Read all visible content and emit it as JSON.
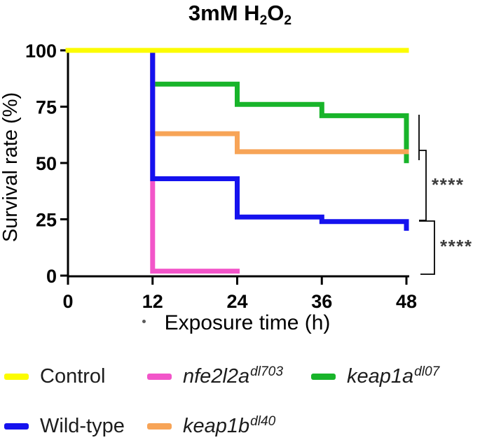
{
  "figure": {
    "title": {
      "prefix": "3mM H",
      "sub1": "2",
      "mid": "O",
      "sub2": "2"
    },
    "y_axis_label": "Survival rate (%)",
    "x_axis_label": "Exposure time (h)"
  },
  "chart_data": {
    "type": "line",
    "subtype": "kaplan-meier-step-survival",
    "title": "3mM H2O2",
    "xlabel": "Exposure time (h)",
    "ylabel": "Survival rate (%)",
    "xlim": [
      0,
      48
    ],
    "ylim": [
      0,
      100
    ],
    "x_ticks": [
      0,
      12,
      24,
      36,
      48
    ],
    "y_ticks": [
      0,
      25,
      50,
      75,
      100
    ],
    "grid": false,
    "legend_position": "bottom",
    "series": [
      {
        "id": "keap1a-dl07",
        "name": "keap1a dl07",
        "color": "#18B42A",
        "points": [
          [
            0,
            100
          ],
          [
            12,
            100
          ],
          [
            12,
            85
          ],
          [
            24,
            85
          ],
          [
            24,
            76
          ],
          [
            36,
            76
          ],
          [
            36,
            71
          ],
          [
            48,
            71
          ],
          [
            48,
            51
          ]
        ]
      },
      {
        "id": "keap1b-dl40",
        "name": "keap1b dl40",
        "color": "#F7A457",
        "points": [
          [
            0,
            100
          ],
          [
            12,
            100
          ],
          [
            12,
            63
          ],
          [
            24,
            63
          ],
          [
            24,
            55
          ],
          [
            48,
            55
          ]
        ]
      },
      {
        "id": "nfe2l2a-dl703",
        "name": "nfe2l2a dl703",
        "color": "#F255C9",
        "points": [
          [
            0,
            100
          ],
          [
            12,
            100
          ],
          [
            12,
            2
          ],
          [
            24,
            2
          ]
        ]
      },
      {
        "id": "wild-type",
        "name": "Wild-type",
        "color": "#1512EE",
        "points": [
          [
            0,
            100
          ],
          [
            12,
            100
          ],
          [
            12,
            43
          ],
          [
            24,
            43
          ],
          [
            24,
            26
          ],
          [
            36,
            26
          ],
          [
            36,
            24
          ],
          [
            48,
            24
          ],
          [
            48,
            21
          ]
        ]
      },
      {
        "id": "control",
        "name": "Control",
        "color": "#FCFC00",
        "points": [
          [
            0,
            100
          ],
          [
            48,
            100
          ]
        ]
      }
    ],
    "annotations": [
      {
        "text": "****"
      },
      {
        "text": "****"
      }
    ]
  },
  "legend": {
    "items": [
      {
        "label": "Control",
        "sup": "",
        "color": "#FCFC00",
        "italic": false
      },
      {
        "label": "nfe2l2a",
        "sup": "dl703",
        "color": "#F255C9",
        "italic": true
      },
      {
        "label": "keap1a",
        "sup": "dl07",
        "color": "#18B42A",
        "italic": true
      },
      {
        "label": "Wild-type",
        "sup": "",
        "color": "#1512EE",
        "italic": false
      },
      {
        "label": "keap1b",
        "sup": "dl40",
        "color": "#F7A457",
        "italic": true
      }
    ]
  },
  "colors": {
    "axis": "#000000",
    "significance_stars": "#3d3d3d",
    "legend_text": "#1c1c1c"
  }
}
